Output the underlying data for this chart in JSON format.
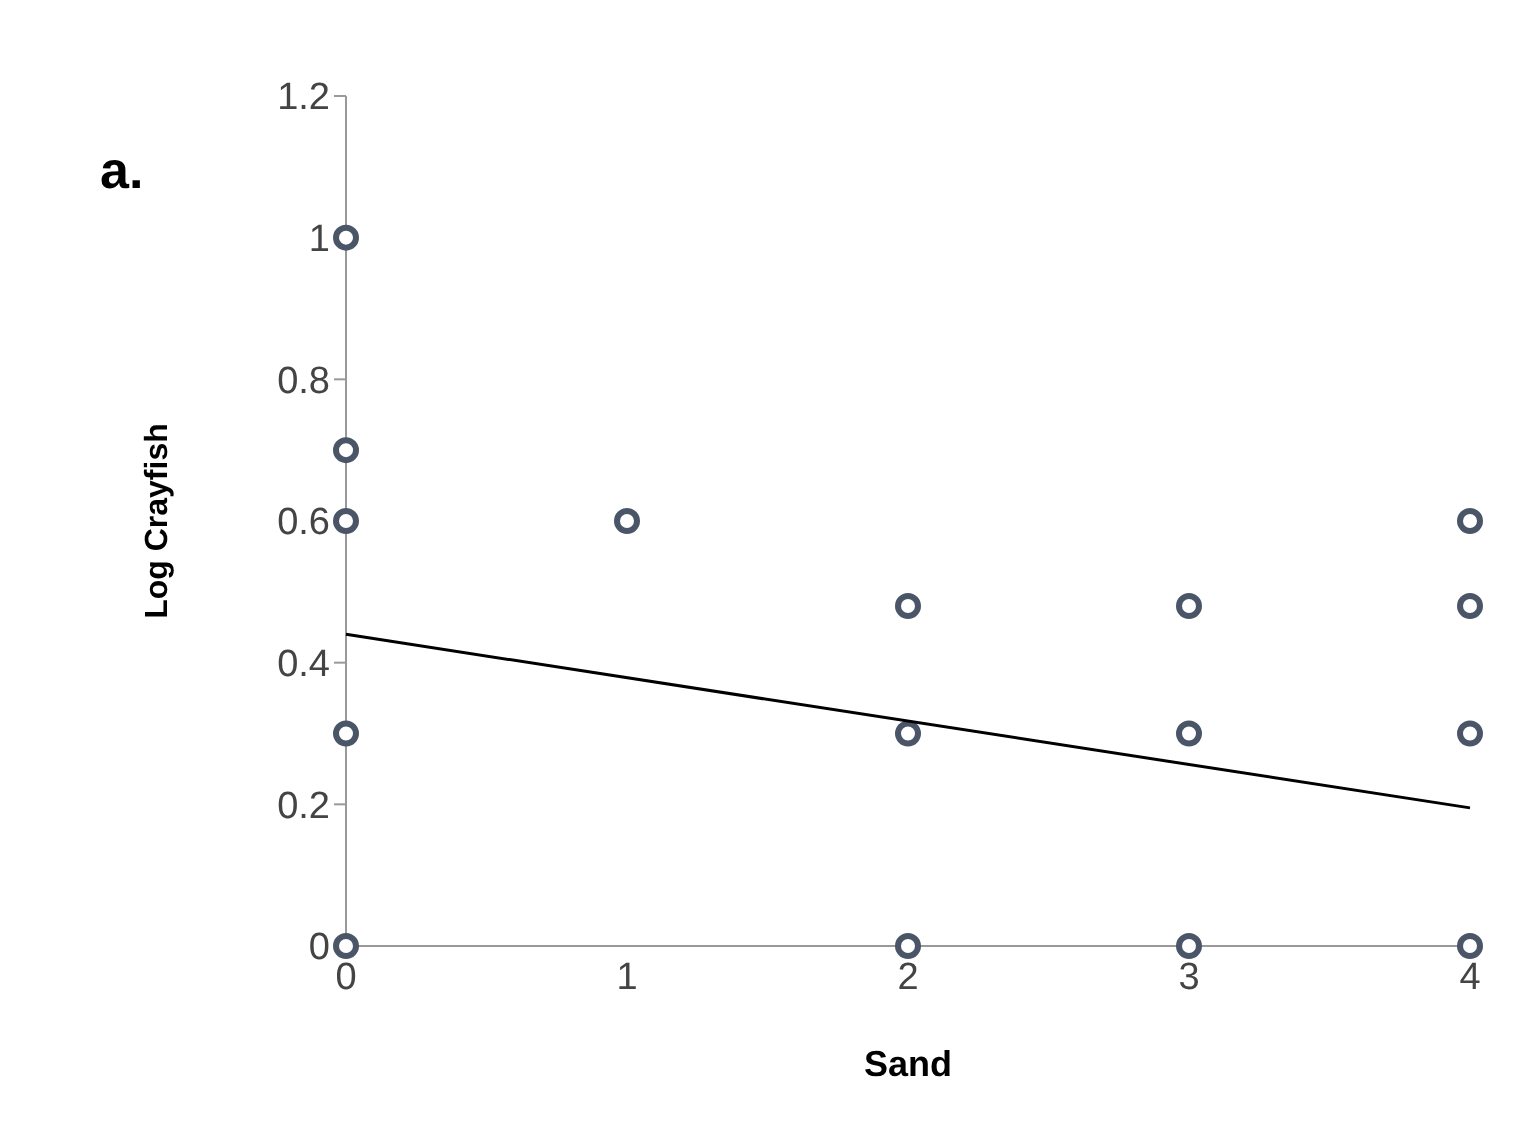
{
  "chart_data": {
    "type": "scatter",
    "xlabel": "Sand",
    "ylabel": "Log Crayfish",
    "annotations": [
      "a."
    ],
    "xlim": [
      0,
      4
    ],
    "xticks": [
      0,
      1,
      2,
      3,
      4
    ],
    "ylim": [
      0,
      1.2
    ],
    "yticks": [
      0,
      0.2,
      0.4,
      0.6,
      0.8,
      1,
      1.2
    ],
    "grid": false,
    "legend": false,
    "marker": "circle",
    "series": [
      {
        "type": "scatter",
        "color": "#4a5568",
        "x": [
          0,
          0,
          0,
          0,
          0,
          1,
          2,
          2,
          2,
          3,
          3,
          3,
          4,
          4,
          4,
          4
        ],
        "values": [
          1,
          0.7,
          0.6,
          0.3,
          0,
          0.6,
          0.48,
          0.3,
          0,
          0.48,
          0.3,
          0,
          0.6,
          0.48,
          0.3,
          0
        ]
      },
      {
        "type": "line",
        "marker": "none",
        "color": "#000000",
        "x": [
          0,
          4
        ],
        "values": [
          0.44,
          0.195
        ]
      }
    ]
  }
}
